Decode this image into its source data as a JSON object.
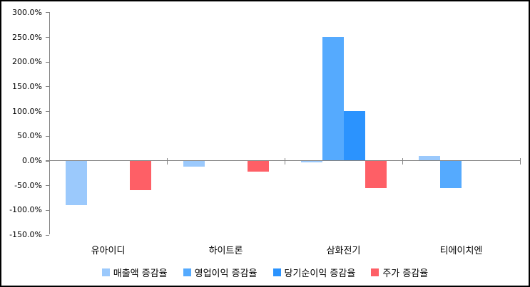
{
  "chart_data": {
    "type": "bar",
    "categories": [
      "유아이디",
      "하이트론",
      "삼화전기",
      "티에이치엔"
    ],
    "series": [
      {
        "name": "매출액 증감율",
        "color": "#9BC9FC",
        "values": [
          -90,
          -12,
          -4,
          9
        ]
      },
      {
        "name": "영업이익 증감율",
        "color": "#55AAFE",
        "values": [
          0,
          0,
          250,
          -55
        ]
      },
      {
        "name": "당기순이익 증감율",
        "color": "#2B93FE",
        "values": [
          0,
          0,
          100,
          0
        ]
      },
      {
        "name": "주가 증감율",
        "color": "#FE5F66",
        "values": [
          -60,
          -22,
          -56,
          0
        ]
      }
    ],
    "y_ticks": [
      {
        "label": "300.0%",
        "value": 300
      },
      {
        "label": "250.0%",
        "value": 250
      },
      {
        "label": "200.0%",
        "value": 200
      },
      {
        "label": "150.0%",
        "value": 150
      },
      {
        "label": "100.0%",
        "value": 100
      },
      {
        "label": "50.0%",
        "value": 50
      },
      {
        "label": "0.0%",
        "value": 0
      },
      {
        "label": "-50.0%",
        "value": -50
      },
      {
        "label": "-100.0%",
        "value": -100
      },
      {
        "label": "-150.0%",
        "value": -150
      }
    ],
    "ylim": [
      -150,
      300
    ],
    "unit": "%",
    "grid": false,
    "legend_position": "bottom",
    "axis_color": "#848484",
    "background_color": "#FFFFFF",
    "border_color": "#000000"
  }
}
